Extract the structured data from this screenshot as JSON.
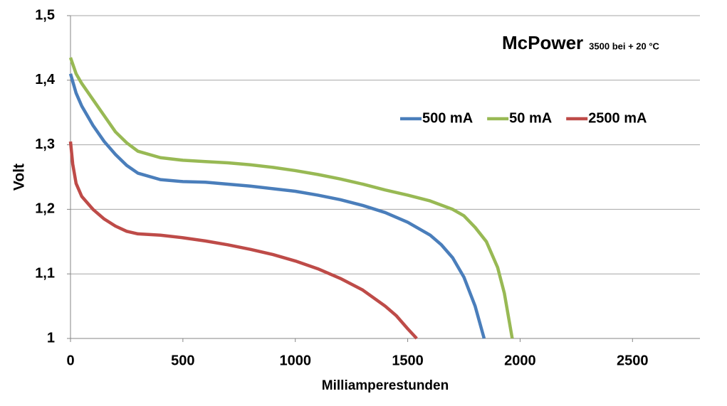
{
  "chart_data": {
    "type": "line",
    "title": "McPower",
    "subtitle": "3500 bei + 20 °C",
    "x_label": "Milliamperestunden",
    "y_label": "Volt",
    "xlim": [
      0,
      2800
    ],
    "xticks": [
      0,
      500,
      1000,
      1500,
      2000,
      2500
    ],
    "ylim": [
      1,
      1.5
    ],
    "yticks": [
      1,
      {
        "value": 1.1,
        "label": "1,1"
      },
      {
        "value": 1.2,
        "label": "1,2"
      },
      {
        "value": 1.3,
        "label": "1,3"
      },
      {
        "value": 1.4,
        "label": "1,4"
      },
      {
        "value": 1.5,
        "label": "1,5"
      }
    ],
    "grid": true,
    "legend": "upper right",
    "series": [
      {
        "name": "500 mA",
        "color": "#4a7ebb",
        "x": [
          0,
          25,
          50,
          100,
          150,
          200,
          250,
          300,
          400,
          500,
          600,
          700,
          800,
          900,
          1000,
          1100,
          1200,
          1300,
          1400,
          1500,
          1600,
          1650,
          1700,
          1750,
          1800,
          1840
        ],
        "values": [
          1.41,
          1.38,
          1.36,
          1.33,
          1.305,
          1.285,
          1.268,
          1.256,
          1.246,
          1.243,
          1.242,
          1.239,
          1.236,
          1.232,
          1.228,
          1.222,
          1.215,
          1.206,
          1.195,
          1.18,
          1.16,
          1.145,
          1.125,
          1.095,
          1.05,
          1.0
        ]
      },
      {
        "name": "50 mA",
        "color": "#98b954",
        "x": [
          0,
          25,
          50,
          100,
          150,
          200,
          250,
          300,
          400,
          500,
          600,
          700,
          800,
          900,
          1000,
          1100,
          1200,
          1300,
          1400,
          1500,
          1600,
          1700,
          1750,
          1800,
          1850,
          1900,
          1930,
          1950,
          1965
        ],
        "values": [
          1.435,
          1.41,
          1.395,
          1.37,
          1.345,
          1.32,
          1.303,
          1.29,
          1.28,
          1.276,
          1.274,
          1.272,
          1.269,
          1.265,
          1.26,
          1.254,
          1.247,
          1.239,
          1.23,
          1.222,
          1.213,
          1.2,
          1.19,
          1.172,
          1.15,
          1.11,
          1.07,
          1.03,
          1.0
        ]
      },
      {
        "name": "2500 mA",
        "color": "#be4b48",
        "x": [
          0,
          10,
          25,
          50,
          100,
          150,
          200,
          250,
          300,
          400,
          500,
          600,
          700,
          800,
          900,
          1000,
          1100,
          1200,
          1300,
          1400,
          1450,
          1500,
          1540
        ],
        "values": [
          1.305,
          1.27,
          1.24,
          1.22,
          1.2,
          1.185,
          1.174,
          1.166,
          1.162,
          1.16,
          1.156,
          1.151,
          1.145,
          1.138,
          1.13,
          1.12,
          1.108,
          1.093,
          1.075,
          1.05,
          1.035,
          1.015,
          1.0
        ]
      }
    ]
  }
}
